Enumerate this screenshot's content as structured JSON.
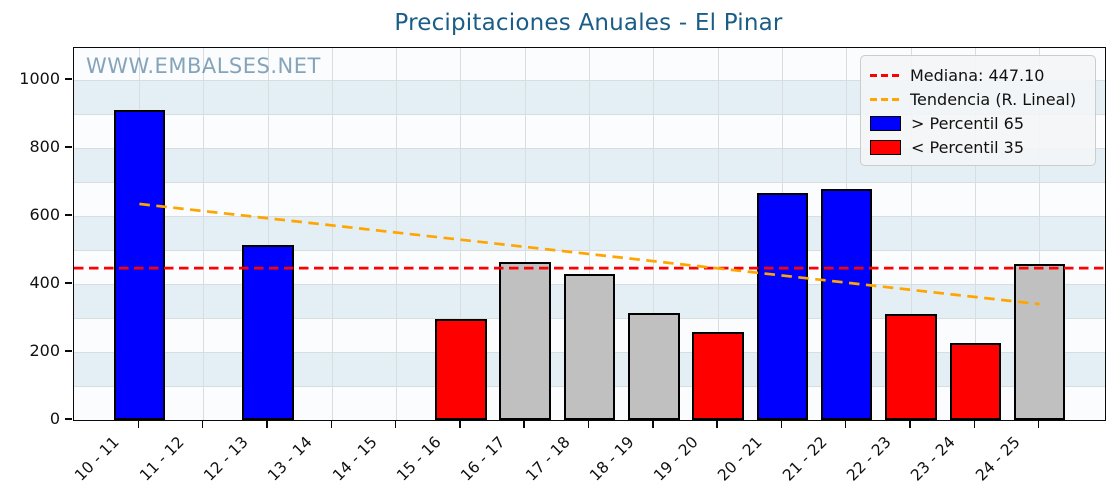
{
  "title": "Precipitaciones Anuales - El Pinar",
  "watermark": "WWW.EMBALSES.NET",
  "legend": {
    "median_label": "Mediana: 447.10",
    "trend_label": "Tendencia (R. Lineal)",
    "high_label": "> Percentil 65",
    "low_label": "< Percentil 35"
  },
  "chart_data": {
    "type": "bar",
    "title": "Precipitaciones Anuales - El Pinar",
    "categories": [
      "10 - 11",
      "11 - 12",
      "12 - 13",
      "13 - 14",
      "14 - 15",
      "15 - 16",
      "16 - 17",
      "17 - 18",
      "18 - 19",
      "19 - 20",
      "20 - 21",
      "21 - 22",
      "22 - 23",
      "23 - 24",
      "24 - 25"
    ],
    "values": [
      912,
      null,
      515,
      null,
      null,
      297,
      466,
      431,
      316,
      259,
      669,
      681,
      313,
      226,
      459
    ],
    "bar_classes": [
      "high",
      null,
      "high",
      null,
      null,
      "low",
      "mid",
      "mid",
      "mid",
      "low",
      "high",
      "high",
      "low",
      "low",
      "mid"
    ],
    "median": 447.1,
    "trend_line": {
      "x_start_index": 0,
      "y_start": 636,
      "x_end_index": 14,
      "y_end": 341
    },
    "ylim": [
      0,
      1095
    ],
    "yticks": [
      0,
      200,
      400,
      600,
      800,
      1000
    ],
    "xlabel": "",
    "ylabel": "",
    "grid": true,
    "legend_position": "upper right",
    "colors": {
      "high": "#0000ff",
      "low": "#ff0000",
      "mid": "#c0c0c0",
      "bar_edge": "#000000",
      "median_line": "#ff0000",
      "trend_line": "#ffa500",
      "band_light": "#e3eff5",
      "band_white": "#fafcfd",
      "title": "#1a5d86"
    }
  }
}
